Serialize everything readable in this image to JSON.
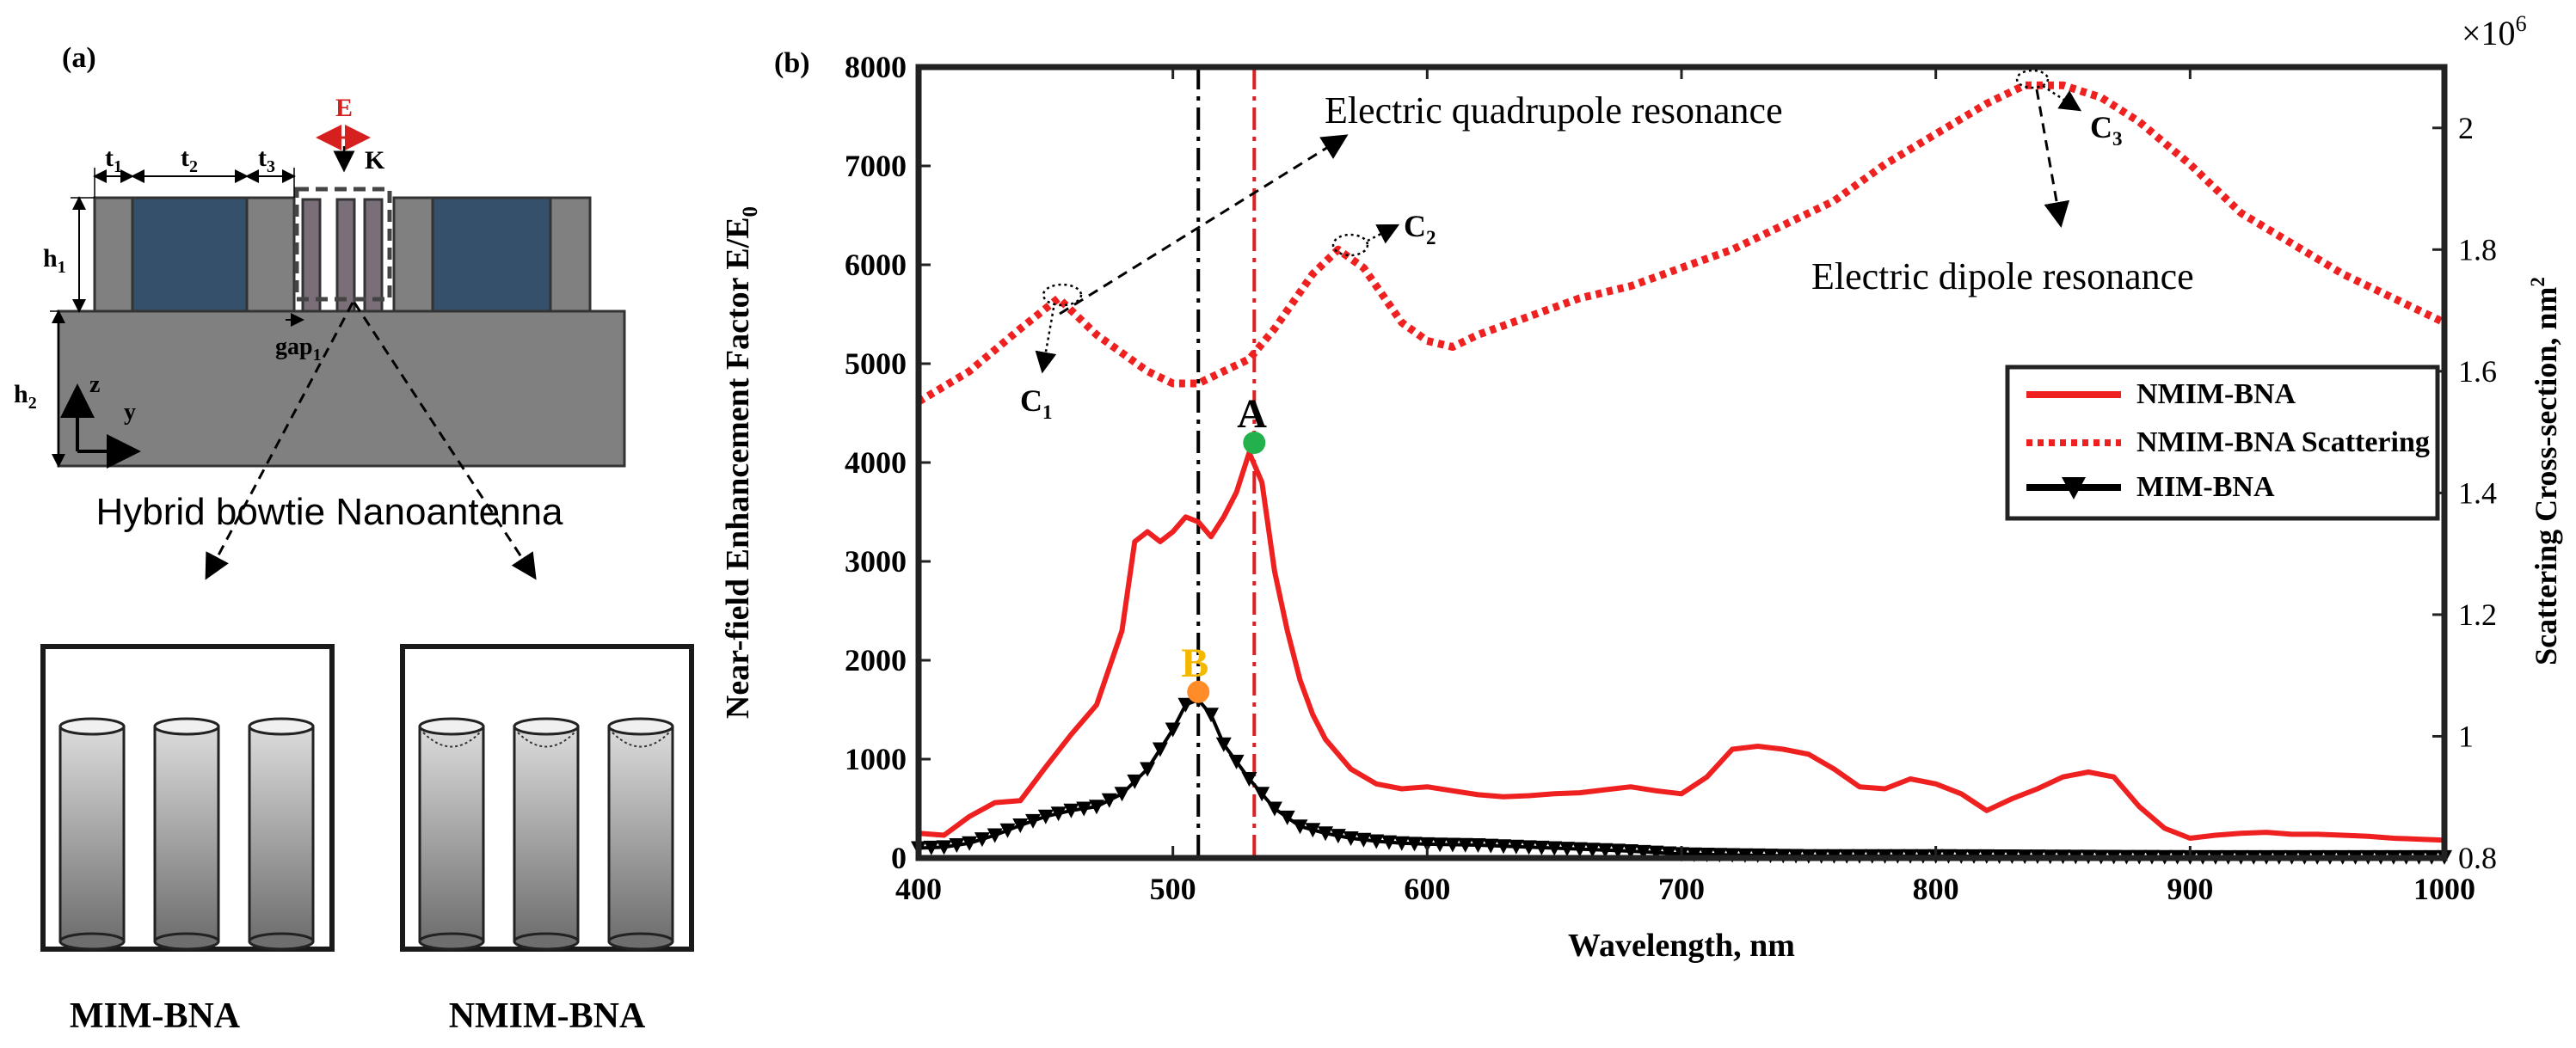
{
  "panel_a": {
    "label": "(a)",
    "title": "Hybrid bowtie Nanoantenna",
    "dims": {
      "t1": "t",
      "t1_sub": "1",
      "t2": "t",
      "t2_sub": "2",
      "t3": "t",
      "t3_sub": "3",
      "h1": "h",
      "h1_sub": "1",
      "h2": "h",
      "h2_sub": "2",
      "gap": "gap",
      "gap_sub": "1"
    },
    "field_E": "E",
    "wave_K": "K",
    "axis_z": "z",
    "axis_y": "y",
    "inset_left_caption": "MIM-BNA",
    "inset_right_caption": "NMIM-BNA",
    "colors": {
      "block": "#808080",
      "dielectric": "#34506b",
      "field": "#d62020"
    }
  },
  "chart_data": {
    "panel_label": "(b)",
    "type": "line",
    "xlabel": "Wavelength, nm",
    "ylabel_left": "Near-field Enhancement Factor E/E",
    "ylabel_left_sub": "0",
    "ylabel_right": "Scattering Cross-section, nm",
    "ylabel_right_sup": "2",
    "right_multiplier": "×10",
    "right_multiplier_sup": "6",
    "xlim": [
      400,
      1000
    ],
    "ylim_left": [
      0,
      8000
    ],
    "ylim_right": [
      0.8,
      2.1
    ],
    "xticks": [
      400,
      500,
      600,
      700,
      800,
      900,
      1000
    ],
    "yticks_left": [
      0,
      1000,
      2000,
      3000,
      4000,
      5000,
      6000,
      7000,
      8000
    ],
    "yticks_right": [
      0.8,
      1,
      1.2,
      1.4,
      1.6,
      1.8,
      2
    ],
    "legend": [
      "NMIM-BNA",
      "NMIM-BNA Scattering",
      "MIM-BNA"
    ],
    "series": [
      {
        "name": "NMIM-BNA",
        "axis": "left",
        "style": "solid",
        "color": "#ee2020",
        "x": [
          400,
          410,
          420,
          430,
          440,
          450,
          460,
          470,
          480,
          485,
          490,
          495,
          500,
          505,
          510,
          515,
          520,
          525,
          530,
          535,
          540,
          545,
          550,
          555,
          560,
          570,
          580,
          590,
          600,
          610,
          620,
          630,
          640,
          650,
          660,
          670,
          680,
          690,
          700,
          710,
          720,
          730,
          740,
          750,
          760,
          770,
          780,
          790,
          800,
          810,
          820,
          830,
          840,
          850,
          860,
          870,
          880,
          890,
          900,
          910,
          920,
          930,
          940,
          950,
          960,
          970,
          980,
          990,
          1000
        ],
        "y": [
          250,
          230,
          420,
          560,
          580,
          920,
          1250,
          1550,
          2300,
          3200,
          3300,
          3200,
          3300,
          3450,
          3400,
          3250,
          3450,
          3700,
          4100,
          3800,
          2900,
          2300,
          1800,
          1450,
          1200,
          900,
          750,
          700,
          720,
          680,
          640,
          620,
          630,
          650,
          660,
          690,
          720,
          680,
          650,
          820,
          1100,
          1130,
          1100,
          1050,
          900,
          720,
          700,
          800,
          750,
          650,
          480,
          600,
          700,
          820,
          870,
          820,
          520,
          300,
          200,
          230,
          250,
          260,
          240,
          240,
          230,
          220,
          200,
          190,
          180
        ]
      },
      {
        "name": "NMIM-BNA Scattering",
        "axis": "right",
        "style": "dotted",
        "color": "#ee2020",
        "x": [
          400,
          420,
          440,
          455,
          470,
          490,
          500,
          510,
          520,
          530,
          540,
          555,
          565,
          575,
          590,
          600,
          610,
          620,
          640,
          660,
          680,
          700,
          720,
          740,
          760,
          780,
          800,
          820,
          835,
          850,
          865,
          880,
          900,
          920,
          940,
          960,
          980,
          1000
        ],
        "y": [
          1.55,
          1.6,
          1.67,
          1.72,
          1.66,
          1.6,
          1.58,
          1.58,
          1.6,
          1.62,
          1.67,
          1.76,
          1.8,
          1.77,
          1.68,
          1.65,
          1.64,
          1.66,
          1.69,
          1.72,
          1.74,
          1.77,
          1.8,
          1.84,
          1.88,
          1.94,
          1.99,
          2.04,
          2.07,
          2.07,
          2.05,
          2.01,
          1.94,
          1.86,
          1.81,
          1.76,
          1.72,
          1.68
        ]
      },
      {
        "name": "MIM-BNA",
        "axis": "left",
        "style": "solid-marker",
        "color": "#000000",
        "x": [
          400,
          410,
          420,
          430,
          440,
          450,
          460,
          470,
          480,
          490,
          500,
          505,
          510,
          515,
          520,
          530,
          540,
          550,
          560,
          570,
          580,
          590,
          600,
          620,
          640,
          660,
          680,
          700,
          720,
          750,
          800,
          850,
          900,
          950,
          1000
        ],
        "y": [
          100,
          110,
          150,
          230,
          330,
          420,
          480,
          520,
          650,
          900,
          1300,
          1550,
          1600,
          1450,
          1150,
          800,
          500,
          320,
          250,
          200,
          170,
          150,
          140,
          130,
          110,
          90,
          70,
          40,
          30,
          20,
          20,
          15,
          10,
          10,
          10
        ]
      }
    ],
    "vlines": [
      {
        "x": 510,
        "color": "#000000",
        "style": "dashdot"
      },
      {
        "x": 532,
        "color": "#e02020",
        "style": "dashdot"
      }
    ],
    "points": [
      {
        "label": "A",
        "x": 532,
        "y": 4200,
        "color": "#22b14c",
        "label_color": "#000000"
      },
      {
        "label": "B",
        "x": 510,
        "y": 1680,
        "color": "#ff8c28",
        "label_color": "#f5b800"
      }
    ],
    "annotations": {
      "quadrupole": "Electric quadrupole resonance",
      "dipole": "Electric dipole resonance",
      "c1": "C",
      "c1_sub": "1",
      "c2": "C",
      "c2_sub": "2",
      "c3": "C",
      "c3_sub": "3"
    }
  }
}
